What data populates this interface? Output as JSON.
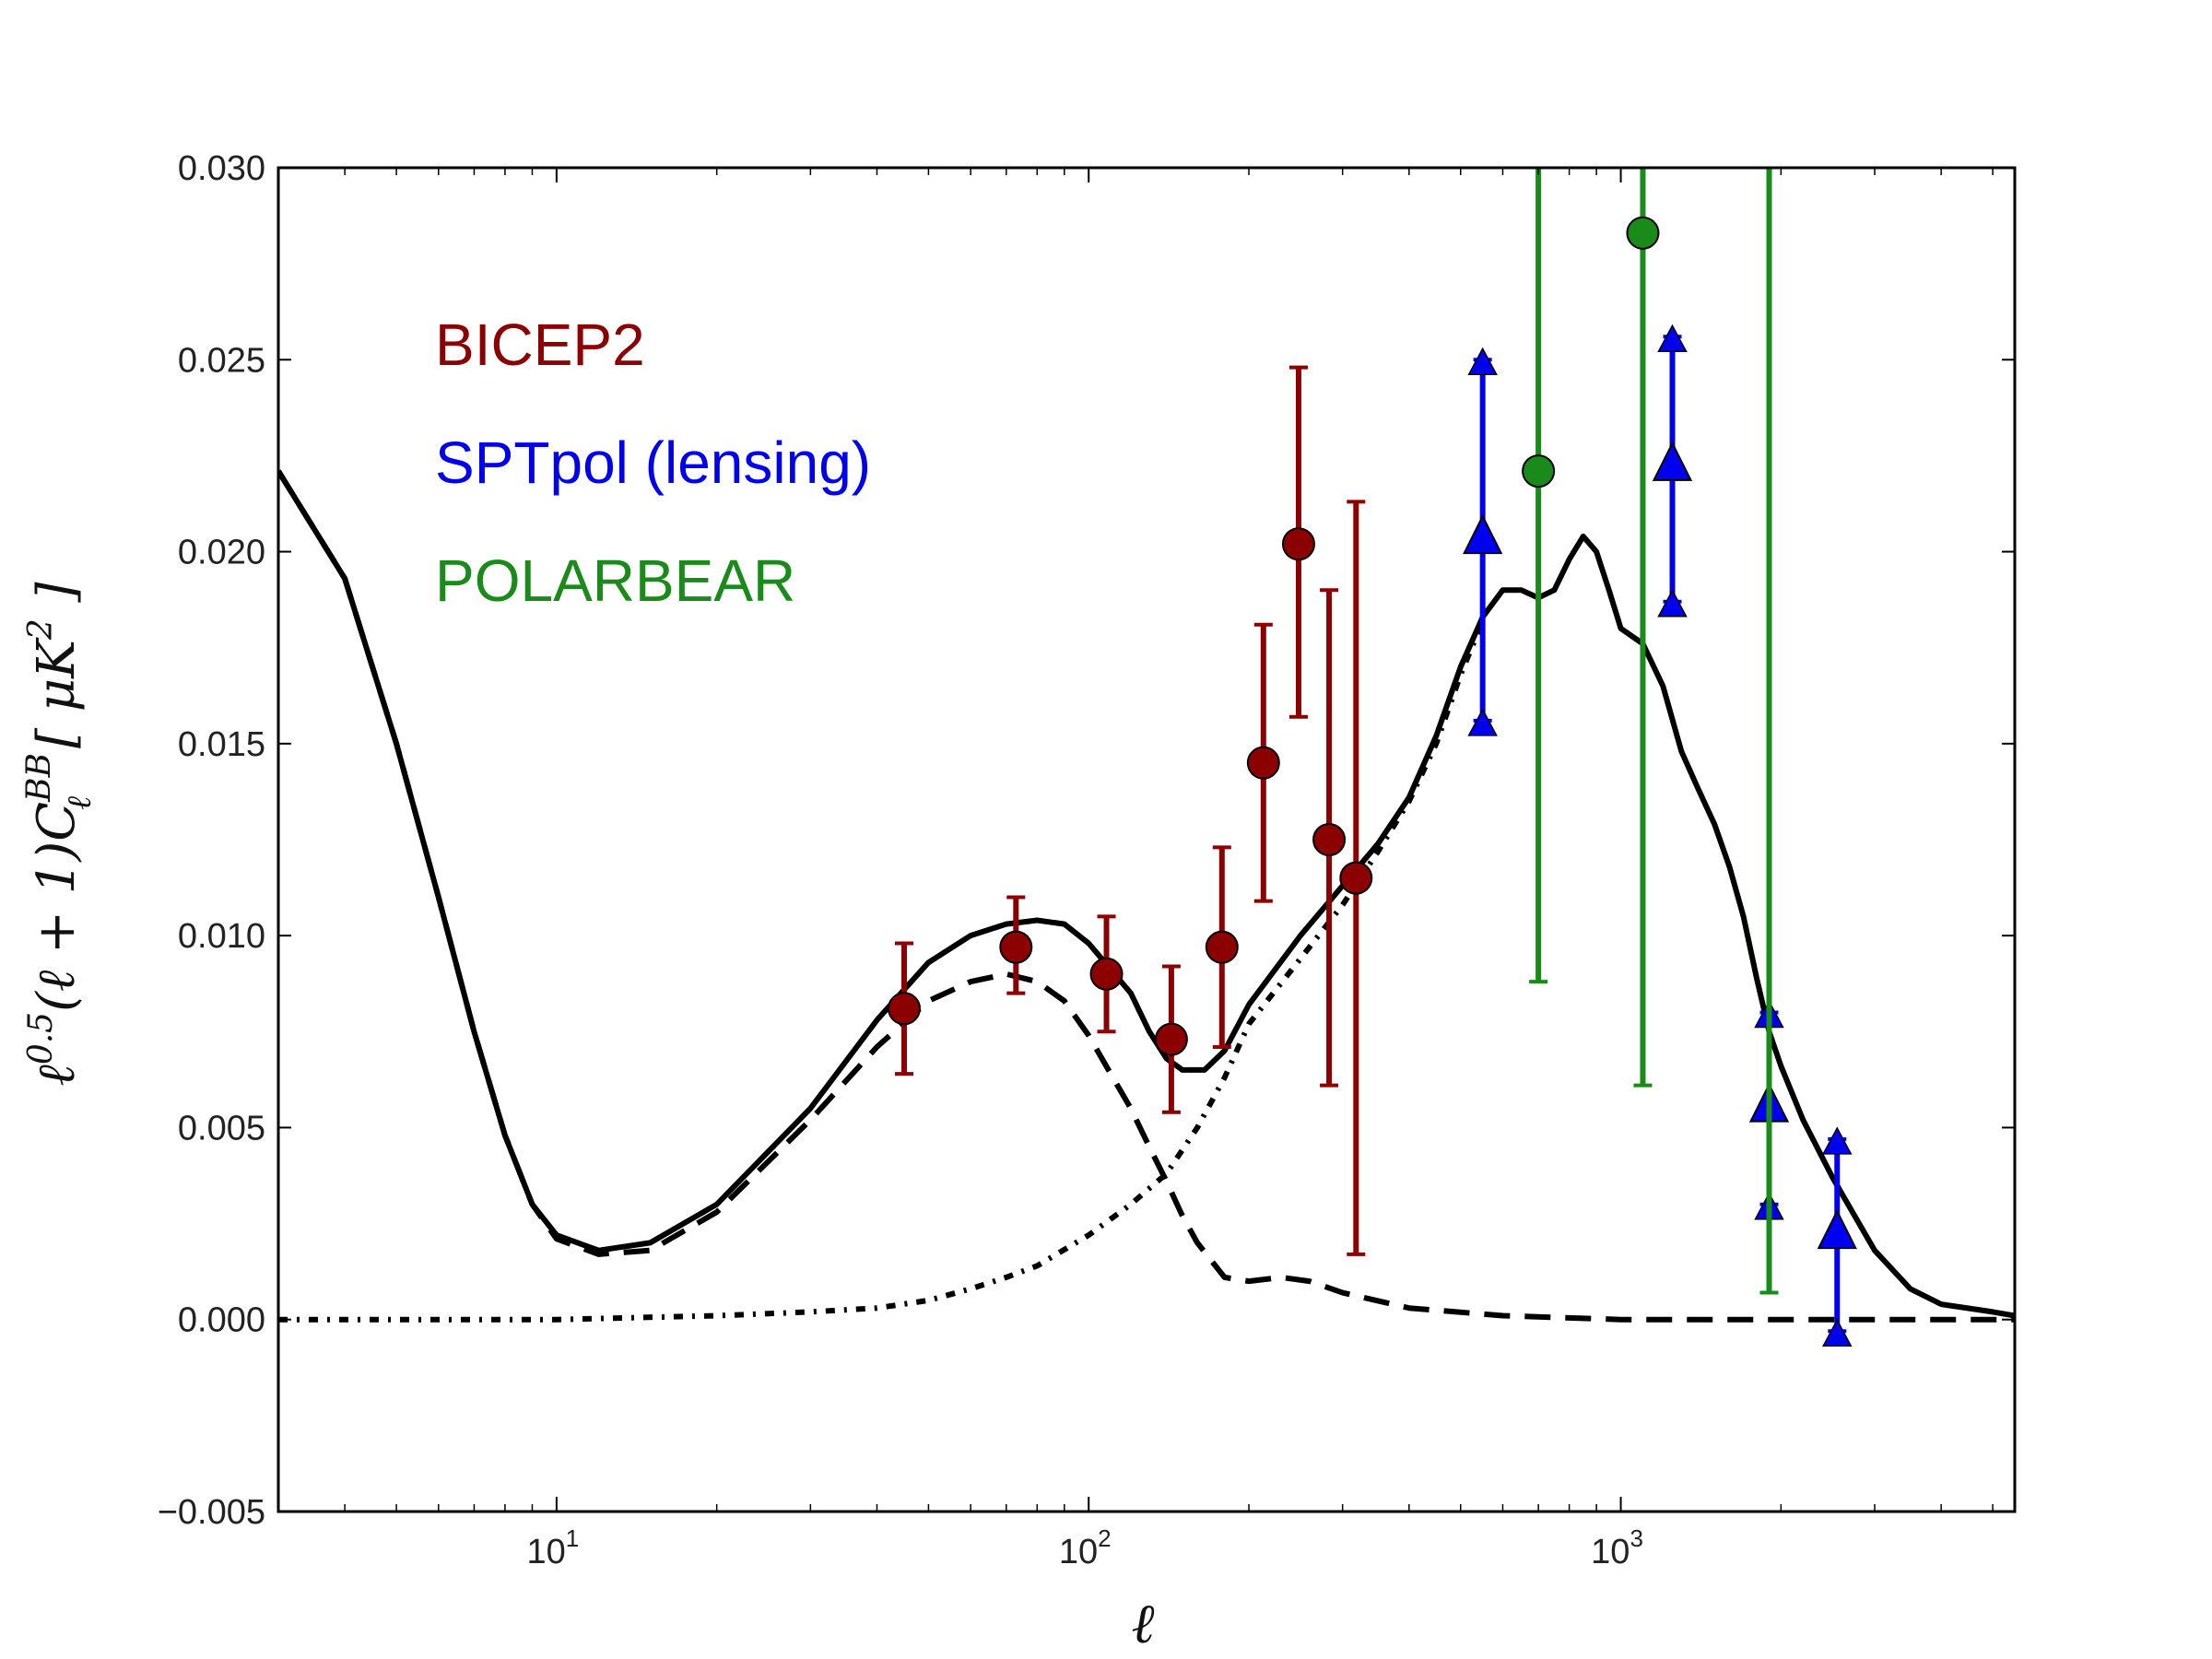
{
  "chart_data": {
    "type": "scatter",
    "xscale": "log",
    "xlim": [
      3,
      5500
    ],
    "ylim": [
      -0.005,
      0.03
    ],
    "xlabel": "ℓ",
    "ylabel_parts": {
      "prefix": "ℓ",
      "sup1": "0.5",
      "mid": "(ℓ + 1)C",
      "sup2": "BB",
      "sub": "ℓ",
      "unit": "[ μK",
      "unit_sup": "2",
      "unit_end": " ]"
    },
    "xticks": [
      {
        "value": 10,
        "base": "10",
        "exp": "1"
      },
      {
        "value": 100,
        "base": "10",
        "exp": "2"
      },
      {
        "value": 1000,
        "base": "10",
        "exp": "3"
      }
    ],
    "yticks": [
      {
        "value": -0.005,
        "label": "−0.005"
      },
      {
        "value": 0.0,
        "label": "0.000"
      },
      {
        "value": 0.005,
        "label": "0.005"
      },
      {
        "value": 0.01,
        "label": "0.010"
      },
      {
        "value": 0.015,
        "label": "0.015"
      },
      {
        "value": 0.02,
        "label": "0.020"
      },
      {
        "value": 0.025,
        "label": "0.025"
      },
      {
        "value": 0.03,
        "label": "0.030"
      }
    ],
    "legend": {
      "placement": "top-left",
      "entries": [
        {
          "label": "BICEP2",
          "color": "#8b0000"
        },
        {
          "label": "SPTpol (lensing)",
          "color": "#0000ee"
        },
        {
          "label": "POLARBEAR",
          "color": "#1a8a1a"
        }
      ]
    },
    "series": [
      {
        "marker": "circle",
        "color": "#8b0000",
        "points": [
          {
            "x": 45,
            "y": 0.0081,
            "ylo": 0.0064,
            "yhi": 0.0098
          },
          {
            "x": 73,
            "y": 0.0097,
            "ylo": 0.0085,
            "yhi": 0.011
          },
          {
            "x": 108,
            "y": 0.009,
            "ylo": 0.0075,
            "yhi": 0.0105
          },
          {
            "x": 143,
            "y": 0.0073,
            "ylo": 0.0054,
            "yhi": 0.0092
          },
          {
            "x": 178,
            "y": 0.0097,
            "ylo": 0.0071,
            "yhi": 0.0123
          },
          {
            "x": 213,
            "y": 0.0145,
            "ylo": 0.0109,
            "yhi": 0.0181
          },
          {
            "x": 248,
            "y": 0.0202,
            "ylo": 0.0157,
            "yhi": 0.0248
          },
          {
            "x": 283,
            "y": 0.0125,
            "ylo": 0.0061,
            "yhi": 0.019
          },
          {
            "x": 318,
            "y": 0.0115,
            "ylo": 0.0017,
            "yhi": 0.0213
          }
        ]
      },
      {
        "marker": "triangle",
        "color": "#0000ee",
        "points": [
          {
            "x": 550,
            "y": 0.0203,
            "ylo": 0.0156,
            "yhi": 0.025
          },
          {
            "x": 1250,
            "y": 0.0222,
            "ylo": 0.0187,
            "yhi": 0.0256
          },
          {
            "x": 1900,
            "y": 0.0055,
            "ylo": 0.003,
            "yhi": 0.008
          },
          {
            "x": 2550,
            "y": 0.0022,
            "ylo": -0.0003,
            "yhi": 0.0047
          }
        ]
      },
      {
        "marker": "circle",
        "color": "#1a8a1a",
        "points": [
          {
            "x": 700,
            "y": 0.0221,
            "ylo": 0.0088,
            "yhi": 0.03
          },
          {
            "x": 1100,
            "y": 0.0283,
            "ylo": 0.0061,
            "yhi": 0.03
          },
          {
            "x": 1900,
            "y": 0.03,
            "ylo": 0.0007,
            "yhi": 0.03
          }
        ]
      }
    ],
    "curves": [
      {
        "style": "solid",
        "color": "#000000",
        "points": [
          [
            3,
            0.0221
          ],
          [
            4,
            0.0193
          ],
          [
            5,
            0.015
          ],
          [
            6,
            0.011
          ],
          [
            7,
            0.0075
          ],
          [
            8,
            0.0048
          ],
          [
            9,
            0.003
          ],
          [
            10,
            0.0022
          ],
          [
            12,
            0.0018
          ],
          [
            15,
            0.002
          ],
          [
            20,
            0.003
          ],
          [
            30,
            0.0055
          ],
          [
            40,
            0.0078
          ],
          [
            50,
            0.0093
          ],
          [
            60,
            0.01
          ],
          [
            70,
            0.0103
          ],
          [
            80,
            0.0104
          ],
          [
            90,
            0.0103
          ],
          [
            100,
            0.0098
          ],
          [
            120,
            0.0085
          ],
          [
            130,
            0.0075
          ],
          [
            140,
            0.0068
          ],
          [
            150,
            0.0065
          ],
          [
            165,
            0.0065
          ],
          [
            180,
            0.007
          ],
          [
            200,
            0.0082
          ],
          [
            250,
            0.01
          ],
          [
            300,
            0.0113
          ],
          [
            350,
            0.0124
          ],
          [
            400,
            0.0136
          ],
          [
            450,
            0.0152
          ],
          [
            500,
            0.017
          ],
          [
            550,
            0.0183
          ],
          [
            600,
            0.019
          ],
          [
            650,
            0.019
          ],
          [
            700,
            0.0188
          ],
          [
            750,
            0.019
          ],
          [
            800,
            0.0198
          ],
          [
            850,
            0.0204
          ],
          [
            900,
            0.02
          ],
          [
            950,
            0.019
          ],
          [
            1000,
            0.018
          ],
          [
            1100,
            0.0176
          ],
          [
            1200,
            0.0165
          ],
          [
            1300,
            0.0148
          ],
          [
            1400,
            0.0138
          ],
          [
            1500,
            0.0129
          ],
          [
            1600,
            0.0118
          ],
          [
            1700,
            0.0105
          ],
          [
            1800,
            0.0089
          ],
          [
            1900,
            0.0075
          ],
          [
            2000,
            0.0066
          ],
          [
            2200,
            0.0052
          ],
          [
            2500,
            0.0037
          ],
          [
            3000,
            0.0018
          ],
          [
            3500,
            0.0008
          ],
          [
            4000,
            0.0004
          ],
          [
            5000,
            0.0002
          ],
          [
            5500,
            0.0001
          ]
        ]
      },
      {
        "style": "dashed",
        "color": "#000000",
        "points": [
          [
            3,
            0.0221
          ],
          [
            4,
            0.0193
          ],
          [
            5,
            0.015
          ],
          [
            6,
            0.011
          ],
          [
            7,
            0.0075
          ],
          [
            8,
            0.0048
          ],
          [
            9,
            0.003
          ],
          [
            10,
            0.0021
          ],
          [
            12,
            0.0017
          ],
          [
            15,
            0.0018
          ],
          [
            20,
            0.0028
          ],
          [
            30,
            0.0052
          ],
          [
            40,
            0.0071
          ],
          [
            50,
            0.0083
          ],
          [
            60,
            0.0088
          ],
          [
            70,
            0.009
          ],
          [
            80,
            0.0088
          ],
          [
            90,
            0.0083
          ],
          [
            100,
            0.0074
          ],
          [
            110,
            0.0064
          ],
          [
            120,
            0.0055
          ],
          [
            130,
            0.0045
          ],
          [
            140,
            0.0036
          ],
          [
            150,
            0.0027
          ],
          [
            160,
            0.002
          ],
          [
            180,
            0.0011
          ],
          [
            200,
            0.001
          ],
          [
            230,
            0.0011
          ],
          [
            260,
            0.001
          ],
          [
            300,
            0.0007
          ],
          [
            400,
            0.0003
          ],
          [
            600,
            0.0001
          ],
          [
            1000,
            0.0
          ],
          [
            5500,
            0.0
          ]
        ]
      },
      {
        "style": "dashdot",
        "color": "#000000",
        "points": [
          [
            3,
            0.0
          ],
          [
            10,
            0.0
          ],
          [
            20,
            0.0001
          ],
          [
            30,
            0.0002
          ],
          [
            40,
            0.0003
          ],
          [
            50,
            0.0005
          ],
          [
            60,
            0.0008
          ],
          [
            70,
            0.0011
          ],
          [
            80,
            0.0014
          ],
          [
            100,
            0.0022
          ],
          [
            120,
            0.003
          ],
          [
            140,
            0.0038
          ],
          [
            160,
            0.005
          ],
          [
            180,
            0.0063
          ],
          [
            200,
            0.0077
          ],
          [
            250,
            0.0094
          ],
          [
            300,
            0.0108
          ],
          [
            350,
            0.0122
          ],
          [
            400,
            0.0135
          ],
          [
            450,
            0.015
          ],
          [
            500,
            0.0168
          ],
          [
            550,
            0.0182
          ]
        ]
      }
    ]
  }
}
